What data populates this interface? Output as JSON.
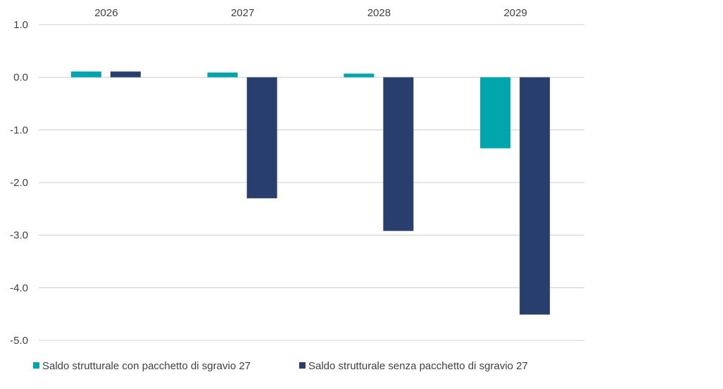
{
  "chart_data": {
    "type": "bar",
    "categories": [
      "2026",
      "2027",
      "2028",
      "2029"
    ],
    "category_axis_position": "top",
    "series": [
      {
        "name": "Saldo strutturale con pacchetto di sgravio 27",
        "color": "#00A6AE",
        "values": [
          0.11,
          0.09,
          0.07,
          -1.35
        ]
      },
      {
        "name": "Saldo strutturale senza pacchetto di sgravio 27",
        "color": "#283F6E",
        "values": [
          0.11,
          -2.3,
          -2.92,
          -4.51
        ]
      }
    ],
    "yticks": [
      "1.0",
      "0.0",
      "-1.0",
      "-2.0",
      "-3.0",
      "-4.0",
      "-5.0"
    ],
    "ylim": [
      -5,
      1
    ],
    "grid": true,
    "legend": "bottom-left"
  }
}
